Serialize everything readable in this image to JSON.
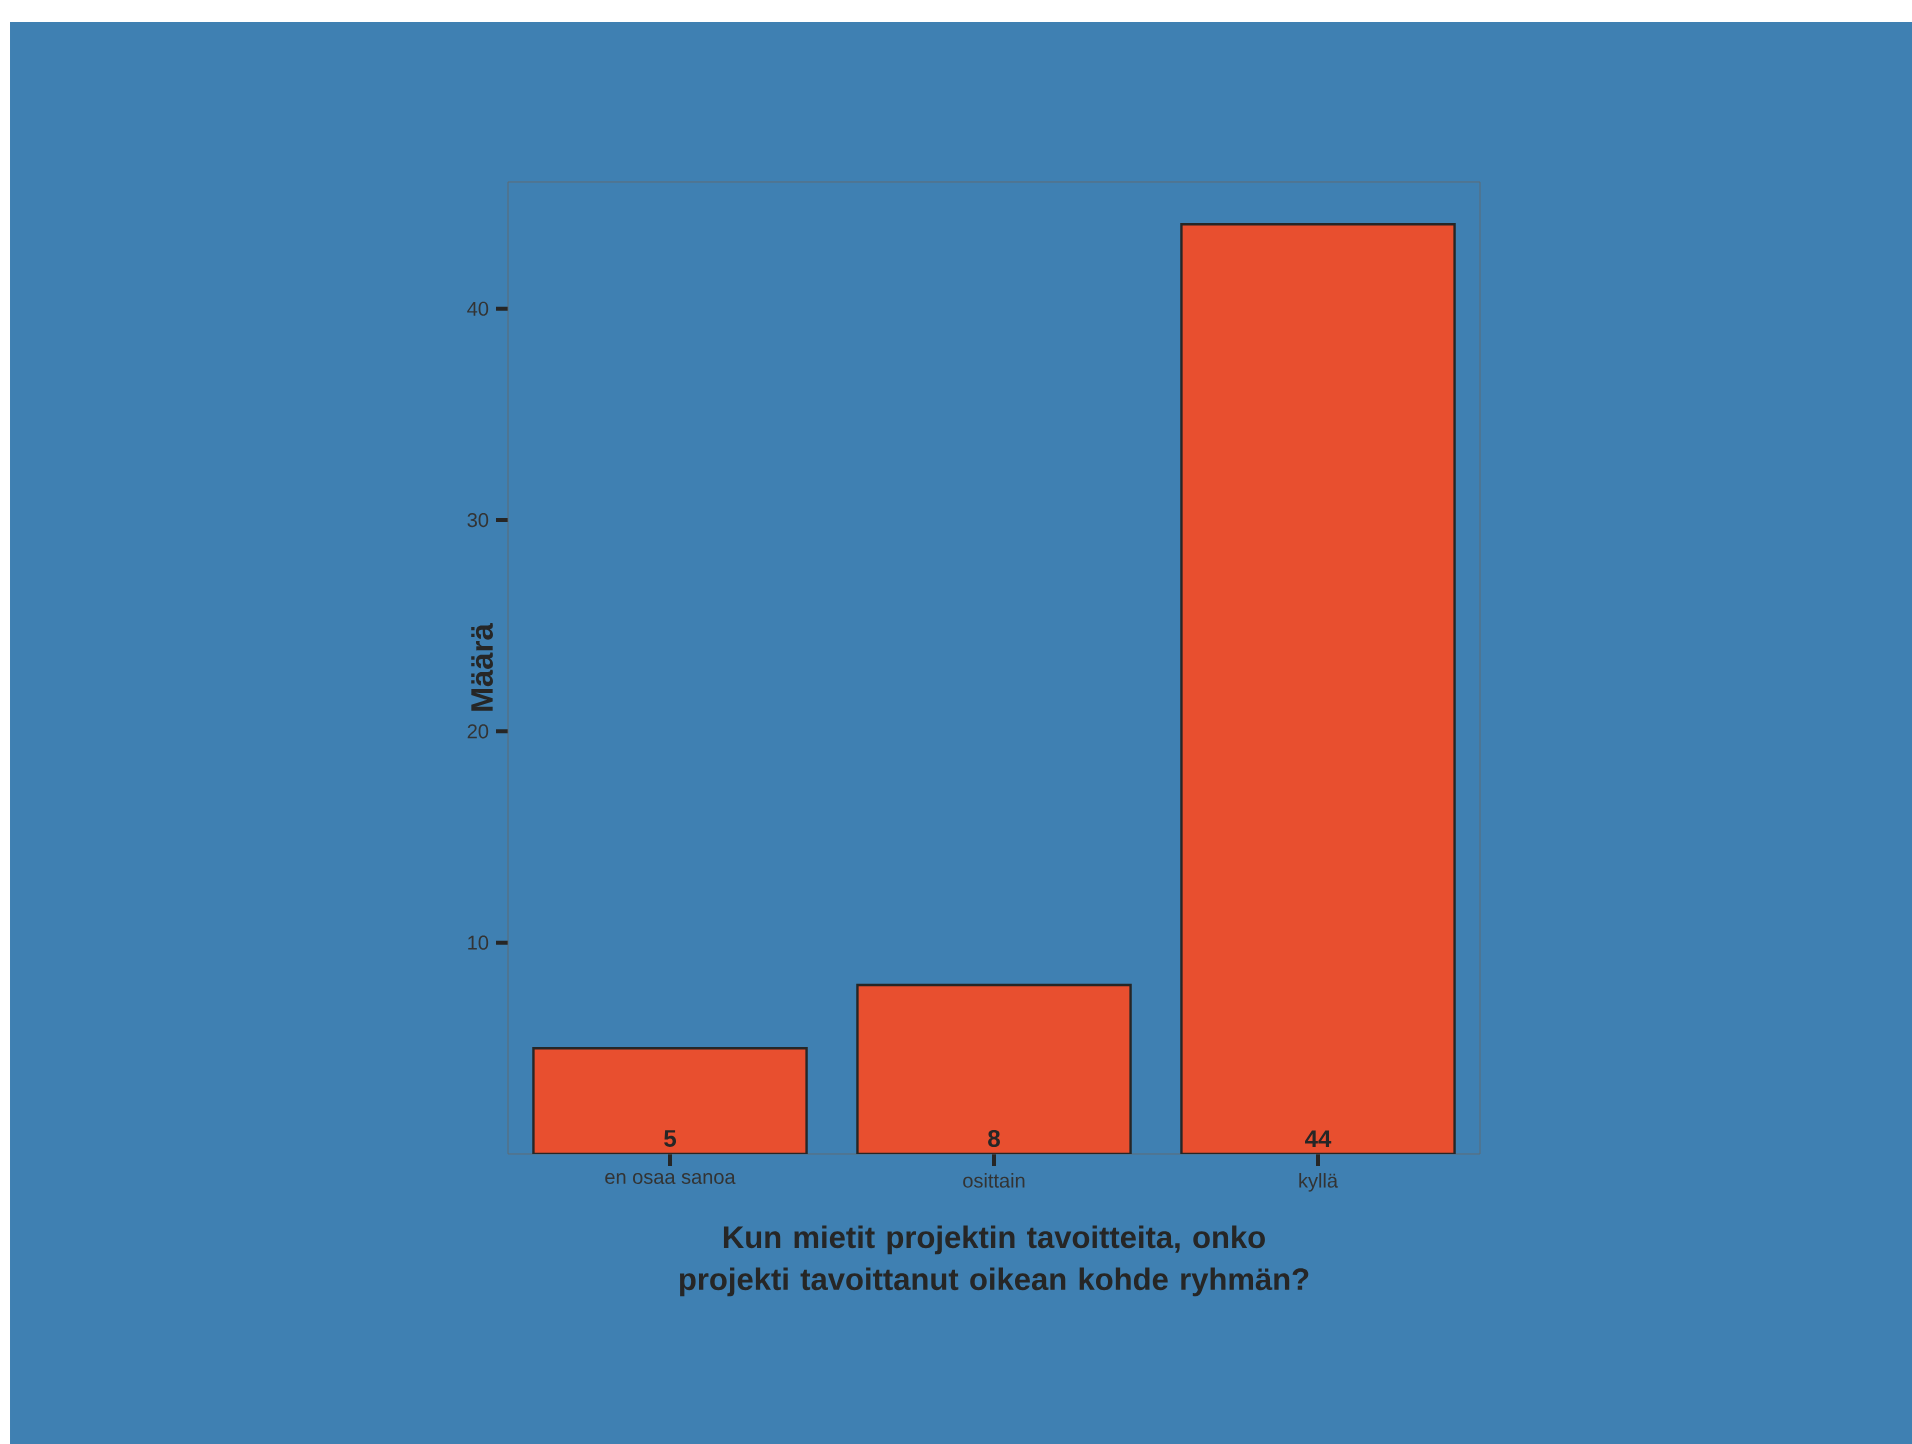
{
  "chart_data": {
    "type": "bar",
    "xlabel": "Kun mietit projektin tavoitteita, onko projekti tavoittanut oikean kohde ryhmän?",
    "ylabel": "Määrä",
    "categories": [
      "en osaa sanoa",
      "osittain",
      "kyllä"
    ],
    "values": [
      5,
      8,
      44
    ],
    "color": "#e84f2f",
    "ylim": [
      0,
      46
    ],
    "yticks": [
      10,
      20,
      30,
      40
    ],
    "data_labels": true
  }
}
